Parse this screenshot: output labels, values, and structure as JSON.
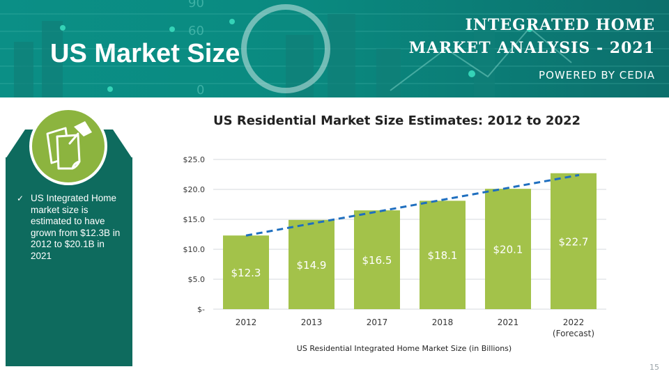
{
  "header": {
    "title": "US Market Size",
    "brand_line1": "INTEGRATED HOME",
    "brand_line2": "MARKET ANALYSIS - 2021",
    "powered_by": "POWERED BY CEDIA",
    "bg_numbers": [
      "90",
      "60",
      "0"
    ]
  },
  "sidebar": {
    "icon": "sticky-notes-pushpin-icon",
    "bullet": "US Integrated Home market size is estimated to have grown from $12.3B in 2012 to $20.1B in 2021"
  },
  "footer": {
    "page_number": "15"
  },
  "colors": {
    "teal": "#0b8f86",
    "panel": "#0e6b5e",
    "bar": "#a3c24a",
    "trend": "#1f6fbf",
    "icon_green": "#8cb43f"
  },
  "chart_data": {
    "type": "bar",
    "title": "US Residential Market Size Estimates: 2012 to 2022",
    "xlabel": "US Residential Integrated Home Market Size (in Billions)",
    "ylabel": "",
    "categories": [
      "2012",
      "2013",
      "2017",
      "2018",
      "2021",
      "2022"
    ],
    "category_sublabels": [
      "",
      "",
      "",
      "",
      "",
      "(Forecast)"
    ],
    "values": [
      12.3,
      14.9,
      16.5,
      18.1,
      20.1,
      22.7
    ],
    "data_labels": [
      "$12.3",
      "$14.9",
      "$16.5",
      "$18.1",
      "$20.1",
      "$22.7"
    ],
    "yticks": [
      0,
      5,
      10,
      15,
      20,
      25
    ],
    "ytick_labels": [
      "$-",
      "$5.0",
      "$10.0",
      "$15.0",
      "$20.0",
      "$25.0"
    ],
    "ylim": [
      0,
      25
    ],
    "grid": true,
    "trendline": {
      "style": "dashed",
      "start": 12.3,
      "end": 22.4
    }
  }
}
